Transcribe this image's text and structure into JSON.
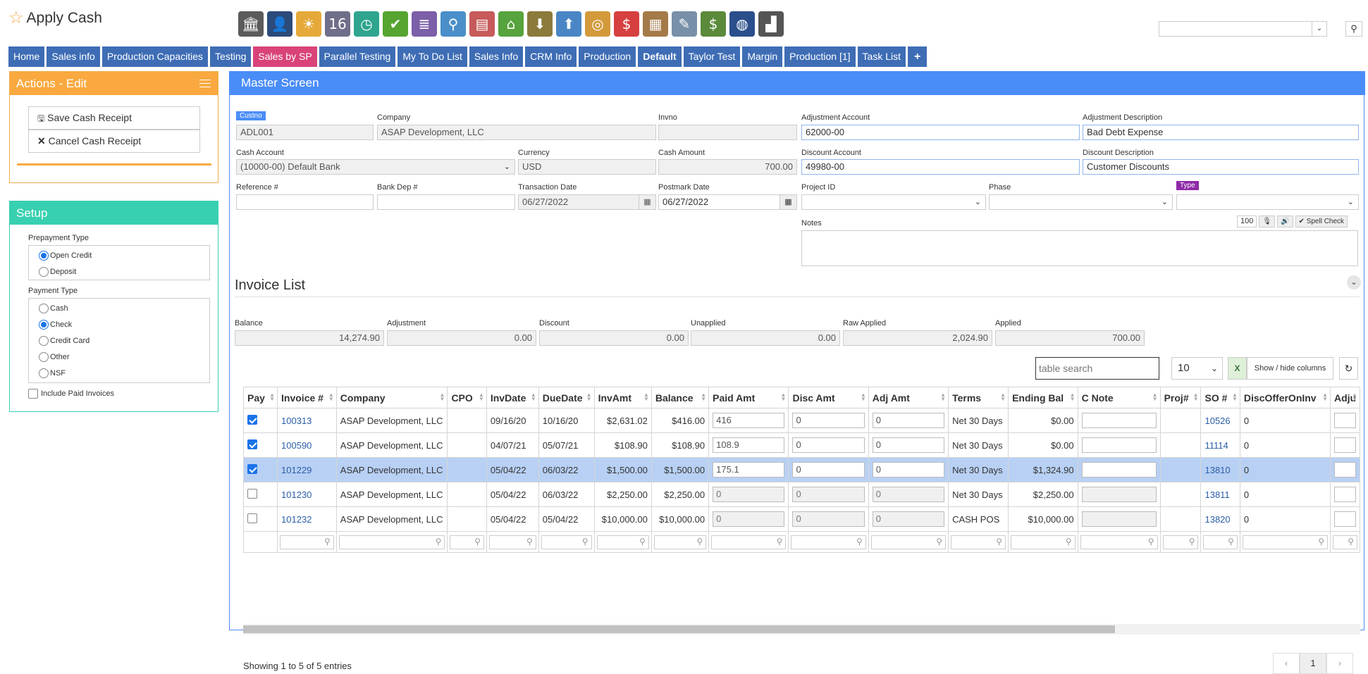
{
  "app": {
    "title": "Apply Cash"
  },
  "toolbar": {
    "icons": [
      {
        "name": "bank-icon",
        "glyph": "🏛",
        "color": "#5b5b5b"
      },
      {
        "name": "user-icon",
        "glyph": "👤",
        "color": "#2c4a7a"
      },
      {
        "name": "weather-icon",
        "glyph": "☀",
        "color": "#e5a93a"
      },
      {
        "name": "calendar-icon",
        "glyph": "16",
        "color": "#6f6f8a"
      },
      {
        "name": "clock-icon",
        "glyph": "◷",
        "color": "#2fa58e"
      },
      {
        "name": "check-icon",
        "glyph": "✔",
        "color": "#55a530"
      },
      {
        "name": "list-icon",
        "glyph": "≣",
        "color": "#7b5fa8"
      },
      {
        "name": "magnifier-icon",
        "glyph": "⚲",
        "color": "#4a8fc9"
      },
      {
        "name": "bus-icon",
        "glyph": "▤",
        "color": "#c75a5a"
      },
      {
        "name": "basket-icon",
        "glyph": "⌂",
        "color": "#57a33d"
      },
      {
        "name": "download-box-icon",
        "glyph": "⬇",
        "color": "#8a7a3b"
      },
      {
        "name": "upload-box-icon",
        "glyph": "⬆",
        "color": "#4a86c5"
      },
      {
        "name": "coins-icon",
        "glyph": "◎",
        "color": "#d39a3b"
      },
      {
        "name": "dollar-chat-icon",
        "glyph": "$",
        "color": "#d64040"
      },
      {
        "name": "clipboard-icon",
        "glyph": "▦",
        "color": "#a47a48"
      },
      {
        "name": "pencil-note-icon",
        "glyph": "✎",
        "color": "#7890a8"
      },
      {
        "name": "money-icon",
        "glyph": "$",
        "color": "#5b8a3b"
      },
      {
        "name": "phone-globe-icon",
        "glyph": "◍",
        "color": "#2b4f8c"
      },
      {
        "name": "factory-icon",
        "glyph": "▟",
        "color": "#555555"
      }
    ]
  },
  "nav": {
    "tabs": [
      {
        "label": "Home",
        "style": ""
      },
      {
        "label": "Sales info",
        "style": ""
      },
      {
        "label": "Production Capacities",
        "style": ""
      },
      {
        "label": "Testing",
        "style": ""
      },
      {
        "label": "Sales by SP",
        "style": "pink"
      },
      {
        "label": "Parallel Testing",
        "style": ""
      },
      {
        "label": "My To Do List",
        "style": ""
      },
      {
        "label": "Sales Info",
        "style": ""
      },
      {
        "label": "CRM Info",
        "style": ""
      },
      {
        "label": "Production",
        "style": ""
      },
      {
        "label": "Default",
        "style": "bold"
      },
      {
        "label": "Taylor Test",
        "style": ""
      },
      {
        "label": "Margin",
        "style": ""
      },
      {
        "label": "Production [1]",
        "style": ""
      },
      {
        "label": "Task List",
        "style": ""
      },
      {
        "label": "+",
        "style": "plus"
      }
    ]
  },
  "actions": {
    "title": "Actions - Edit",
    "save": "Save Cash Receipt",
    "cancel": "Cancel Cash Receipt"
  },
  "setup": {
    "title": "Setup",
    "prepayment_label": "Prepayment Type",
    "prepayment_options": [
      {
        "label": "Open Credit",
        "checked": true
      },
      {
        "label": "Deposit",
        "checked": false
      }
    ],
    "payment_label": "Payment Type",
    "payment_options": [
      {
        "label": "Cash",
        "checked": false
      },
      {
        "label": "Check",
        "checked": true
      },
      {
        "label": "Credit Card",
        "checked": false
      },
      {
        "label": "Other",
        "checked": false
      },
      {
        "label": "NSF",
        "checked": false
      }
    ],
    "include_paid_label": "Include Paid Invoices",
    "include_paid": false
  },
  "master": {
    "title": "Master Screen",
    "custno_label": "Custno",
    "custno": "ADL001",
    "company_label": "Company",
    "company": "ASAP Development, LLC",
    "invno_label": "Invno",
    "invno": "",
    "adj_account_label": "Adjustment Account",
    "adj_account": "62000-00",
    "adj_desc_label": "Adjustment Description",
    "adj_desc": "Bad Debt Expense",
    "cash_account_label": "Cash Account",
    "cash_account": "(10000-00) Default Bank",
    "currency_label": "Currency",
    "currency": "USD",
    "cash_amount_label": "Cash Amount",
    "cash_amount": "700.00",
    "disc_account_label": "Discount Account",
    "disc_account": "49980-00",
    "disc_desc_label": "Discount Description",
    "disc_desc": "Customer Discounts",
    "ref_label": "Reference #",
    "ref": "",
    "bank_dep_label": "Bank Dep #",
    "bank_dep": "",
    "trans_date_label": "Transaction Date",
    "trans_date": "06/27/2022",
    "postmark_label": "Postmark Date",
    "postmark": "06/27/2022",
    "project_label": "Project ID",
    "phase_label": "Phase",
    "type_label": "Type",
    "notes_label": "Notes",
    "notes_limit": "100",
    "spell_check": "Spell Check"
  },
  "invoice_list": {
    "title": "Invoice List",
    "summary": [
      {
        "label": "Balance",
        "value": "14,274.90"
      },
      {
        "label": "Adjustment",
        "value": "0.00"
      },
      {
        "label": "Discount",
        "value": "0.00"
      },
      {
        "label": "Unapplied",
        "value": "0.00"
      },
      {
        "label": "Raw Applied",
        "value": "2,024.90"
      },
      {
        "label": "Applied",
        "value": "700.00"
      }
    ],
    "search_placeholder": "table search",
    "page_length": "10",
    "show_hide": "Show / hide columns",
    "columns": [
      "Pay",
      "Invoice #",
      "Company",
      "CPO",
      "InvDate",
      "DueDate",
      "InvAmt",
      "Balance",
      "Paid Amt",
      "Disc Amt",
      "Adj Amt",
      "Terms",
      "Ending Bal",
      "C Note",
      "Proj#",
      "SO #",
      "DiscOfferOnInv",
      "Adju"
    ],
    "rows": [
      {
        "pay": true,
        "invoice": "100313",
        "company": "ASAP Development, LLC",
        "cpo": "",
        "invdate": "09/16/20",
        "duedate": "10/16/20",
        "invamt": "$2,631.02",
        "balance": "$416.00",
        "paid": "416",
        "disc": "0",
        "adj": "0",
        "terms": "Net 30 Days",
        "ending": "$0.00",
        "so": "10526",
        "discoffer": "0",
        "selected": false,
        "editable": true
      },
      {
        "pay": true,
        "invoice": "100590",
        "company": "ASAP Development, LLC",
        "cpo": "",
        "invdate": "04/07/21",
        "duedate": "05/07/21",
        "invamt": "$108.90",
        "balance": "$108.90",
        "paid": "108.9",
        "disc": "0",
        "adj": "0",
        "terms": "Net 30 Days",
        "ending": "$0.00",
        "so": "11114",
        "discoffer": "0",
        "selected": false,
        "editable": true
      },
      {
        "pay": true,
        "invoice": "101229",
        "company": "ASAP Development, LLC",
        "cpo": "",
        "invdate": "05/04/22",
        "duedate": "06/03/22",
        "invamt": "$1,500.00",
        "balance": "$1,500.00",
        "paid": "175.1",
        "disc": "0",
        "adj": "0",
        "terms": "Net 30 Days",
        "ending": "$1,324.90",
        "so": "13810",
        "discoffer": "0",
        "selected": true,
        "editable": true
      },
      {
        "pay": false,
        "invoice": "101230",
        "company": "ASAP Development, LLC",
        "cpo": "",
        "invdate": "05/04/22",
        "duedate": "06/03/22",
        "invamt": "$2,250.00",
        "balance": "$2,250.00",
        "paid": "0",
        "disc": "0",
        "adj": "0",
        "terms": "Net 30 Days",
        "ending": "$2,250.00",
        "so": "13811",
        "discoffer": "0",
        "selected": false,
        "editable": false
      },
      {
        "pay": false,
        "invoice": "101232",
        "company": "ASAP Development, LLC",
        "cpo": "",
        "invdate": "05/04/22",
        "duedate": "05/04/22",
        "invamt": "$10,000.00",
        "balance": "$10,000.00",
        "paid": "0",
        "disc": "0",
        "adj": "0",
        "terms": "CASH POS",
        "ending": "$10,000.00",
        "so": "13820",
        "discoffer": "0",
        "selected": false,
        "editable": false
      }
    ],
    "showing": "Showing 1 to 5 of 5 entries",
    "page": "1",
    "prev": "‹",
    "next": "›"
  },
  "colors": {
    "nav": "#3e6db5",
    "nav_active": "#d9437a",
    "actions": "#f9a93f",
    "setup": "#37d0b0",
    "main": "#4a8df8",
    "selected_row": "#b8d0f4"
  }
}
